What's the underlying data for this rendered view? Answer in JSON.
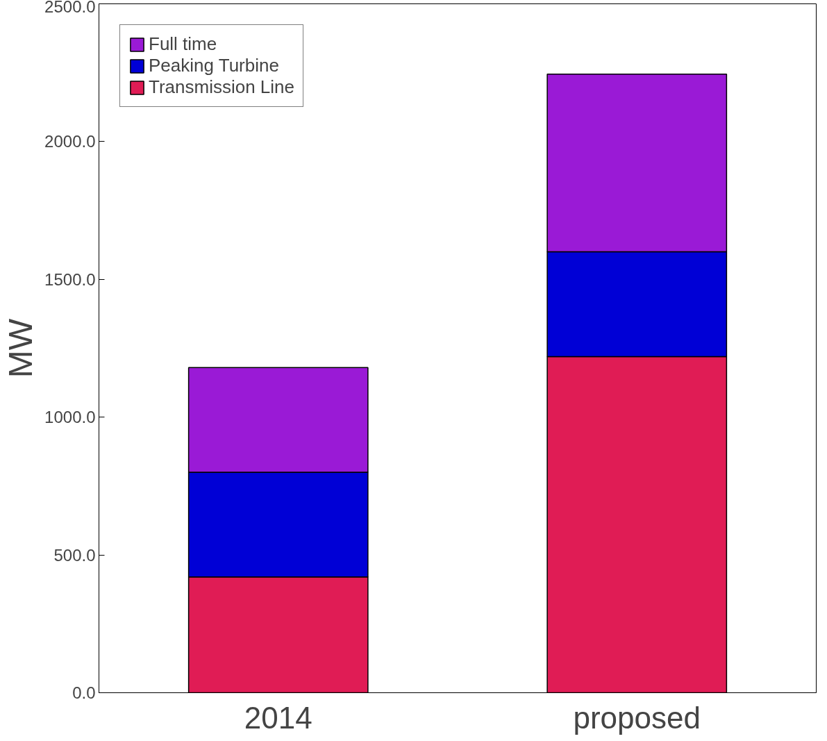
{
  "chart_data": {
    "type": "bar",
    "stacked": true,
    "ylabel": "MW",
    "categories": [
      "2014",
      "proposed"
    ],
    "series": [
      {
        "name": "Transmission Line",
        "color": "#e01c55",
        "values": [
          420,
          1220
        ]
      },
      {
        "name": "Peaking Turbine",
        "color": "#0000d6",
        "values": [
          380,
          380
        ]
      },
      {
        "name": "Full time",
        "color": "#9a1ad6",
        "values": [
          380,
          645
        ]
      }
    ],
    "ylim": [
      0,
      2500
    ],
    "yticks": [
      {
        "value": 0,
        "label": "0.0"
      },
      {
        "value": 500,
        "label": "500.0"
      },
      {
        "value": 1000,
        "label": "1000.0"
      },
      {
        "value": 1500,
        "label": "1500.0"
      },
      {
        "value": 2000,
        "label": "2000.0"
      },
      {
        "value": 2500,
        "label": "2500.0"
      }
    ],
    "grid": false,
    "legend": "top left"
  }
}
